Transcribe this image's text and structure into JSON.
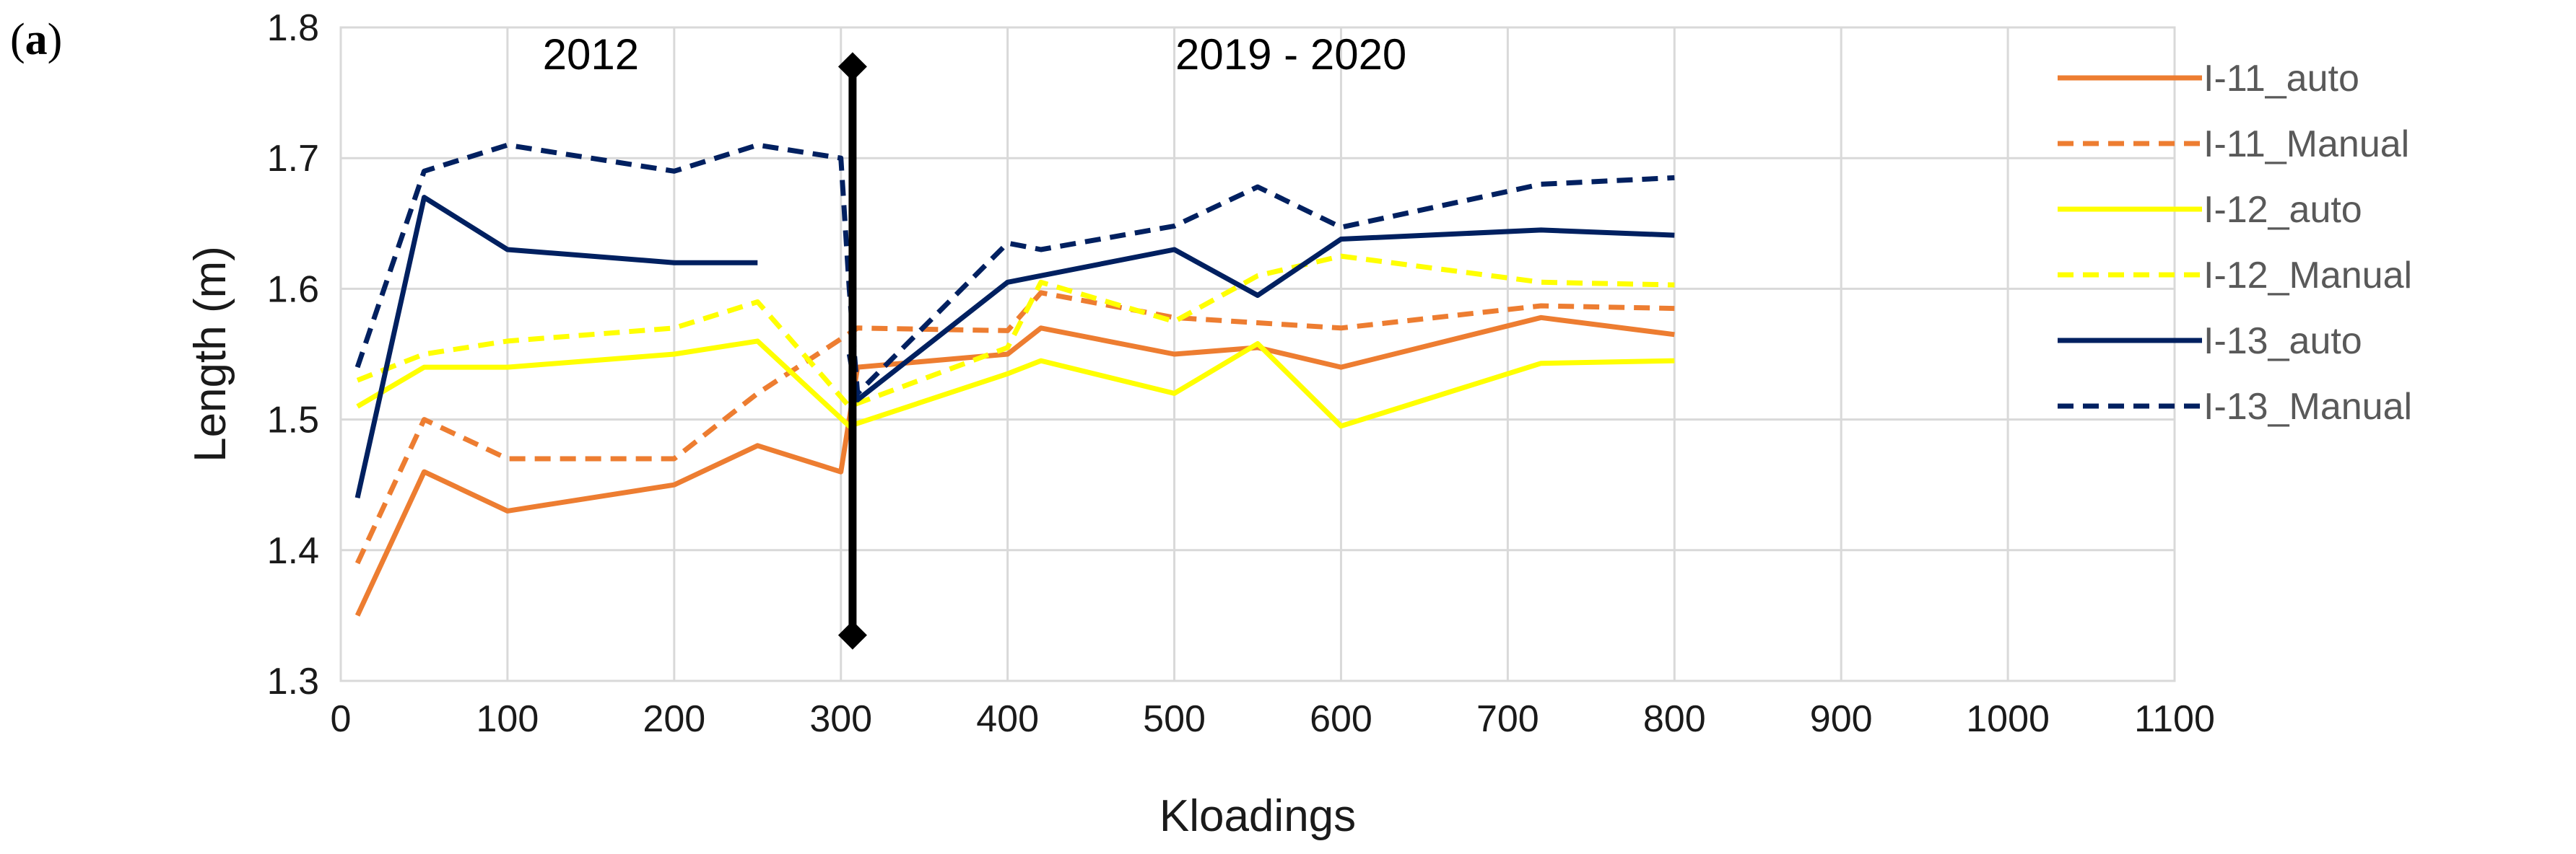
{
  "panel_label": {
    "open": "(",
    "letter": "a",
    "close": ")"
  },
  "chart_data": {
    "type": "line",
    "title": "",
    "xlabel": "Kloadings",
    "ylabel": "Length (m)",
    "xlim": [
      0,
      1100
    ],
    "ylim": [
      1.3,
      1.8
    ],
    "xticks": [
      0,
      100,
      200,
      300,
      400,
      500,
      600,
      700,
      800,
      900,
      1000,
      1100
    ],
    "xtick_labels": [
      "0",
      "100",
      "200",
      "300",
      "400",
      "500",
      "600",
      "700",
      "800",
      "900",
      "1000",
      "1100"
    ],
    "yticks": [
      1.3,
      1.4,
      1.5,
      1.6,
      1.7,
      1.8
    ],
    "ytick_labels": [
      "1.3",
      "1.4",
      "1.5",
      "1.6",
      "1.7",
      "1.8"
    ],
    "grid": true,
    "legend_position": "right",
    "annotations": [
      {
        "text": "2012",
        "x": 150,
        "y": 1.78
      },
      {
        "text": "2019 - 2020",
        "x": 570,
        "y": 1.78
      }
    ],
    "divider": {
      "x": 307,
      "y_range": [
        1.335,
        1.77
      ]
    },
    "series": [
      {
        "name": "I-11_auto",
        "color": "#ED7D31",
        "dash": "solid",
        "x": [
          10,
          50,
          100,
          200,
          250,
          300,
          310,
          400,
          420,
          500,
          550,
          600,
          720,
          800
        ],
        "y": [
          1.35,
          1.46,
          1.43,
          1.45,
          1.48,
          1.46,
          1.54,
          1.55,
          1.57,
          1.55,
          1.555,
          1.54,
          1.578,
          1.565
        ]
      },
      {
        "name": "I-11_Manual",
        "color": "#ED7D31",
        "dash": "dashed",
        "x": [
          10,
          50,
          100,
          200,
          250,
          310,
          400,
          420,
          500,
          600,
          720,
          800
        ],
        "y": [
          1.39,
          1.5,
          1.47,
          1.47,
          1.52,
          1.57,
          1.568,
          1.597,
          1.578,
          1.57,
          1.587,
          1.585
        ]
      },
      {
        "name": "I-12_auto",
        "color": "#FFFF00",
        "dash": "solid",
        "x": [
          10,
          50,
          100,
          200,
          250,
          305,
          400,
          420,
          500,
          550,
          600,
          720,
          800
        ],
        "y": [
          1.51,
          1.54,
          1.54,
          1.55,
          1.56,
          1.495,
          1.535,
          1.545,
          1.52,
          1.558,
          1.495,
          1.543,
          1.545
        ]
      },
      {
        "name": "I-12_Manual",
        "color": "#FFFF00",
        "dash": "dashed",
        "x": [
          10,
          50,
          100,
          200,
          250,
          305,
          400,
          420,
          500,
          550,
          600,
          720,
          800
        ],
        "y": [
          1.53,
          1.55,
          1.56,
          1.57,
          1.59,
          1.51,
          1.555,
          1.605,
          1.575,
          1.61,
          1.625,
          1.605,
          1.603
        ]
      },
      {
        "name": "I-13_auto",
        "color": "#002060",
        "dash": "solid",
        "x": [
          10,
          50,
          100,
          200,
          250
        ],
        "y": [
          1.44,
          1.67,
          1.63,
          1.62,
          1.62
        ]
      },
      {
        "name": "I-13_auto_b",
        "legend": false,
        "color": "#002060",
        "dash": "solid",
        "x": [
          305,
          310,
          400,
          500,
          550,
          600,
          720,
          800
        ],
        "y": [
          1.55,
          1.515,
          1.605,
          1.63,
          1.595,
          1.638,
          1.645,
          1.641
        ]
      },
      {
        "name": "I-13_Manual",
        "color": "#002060",
        "dash": "dashed",
        "x": [
          10,
          50,
          100,
          200,
          250,
          300,
          305,
          310,
          400,
          420,
          500,
          550,
          600,
          720,
          800
        ],
        "y": [
          1.54,
          1.69,
          1.71,
          1.69,
          1.71,
          1.7,
          1.6,
          1.52,
          1.635,
          1.63,
          1.648,
          1.678,
          1.647,
          1.68,
          1.685
        ]
      }
    ]
  }
}
